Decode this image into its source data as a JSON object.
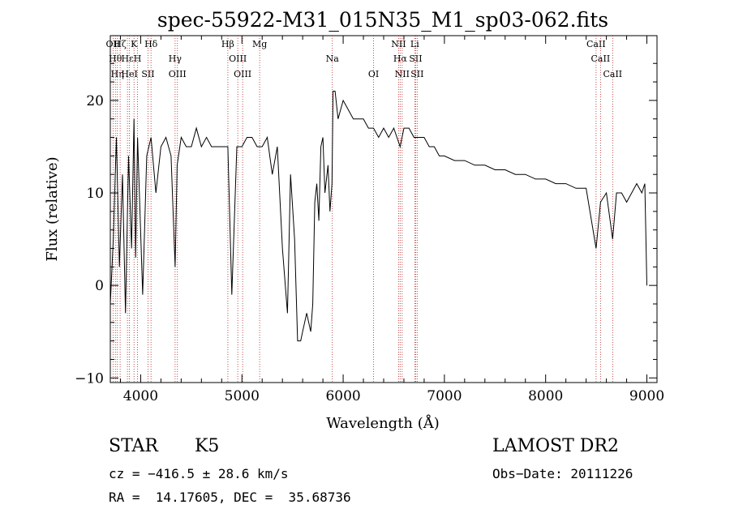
{
  "chart_data": {
    "type": "line",
    "title": "spec-55922-M31_015N35_M1_sp03-062.fits",
    "xlabel": "Wavelength (Å)",
    "ylabel": "Flux (relative)",
    "xlim": [
      3700,
      9100
    ],
    "ylim": [
      -10.5,
      27
    ],
    "xticks": [
      4000,
      5000,
      6000,
      7000,
      8000,
      9000
    ],
    "yticks": [
      -10,
      0,
      10,
      20
    ],
    "grid": false,
    "series": [
      {
        "x": [
          3700,
          3730,
          3760,
          3790,
          3820,
          3850,
          3880,
          3910,
          3934,
          3950,
          3969,
          3990,
          4020,
          4060,
          4102,
          4150,
          4200,
          4250,
          4300,
          4340,
          4360,
          4400,
          4450,
          4500,
          4550,
          4600,
          4650,
          4700,
          4750,
          4800,
          4861,
          4900,
          4950,
          5000,
          5050,
          5100,
          5150,
          5200,
          5250,
          5300,
          5350,
          5400,
          5450,
          5480,
          5520,
          5550,
          5580,
          5600,
          5620,
          5640,
          5660,
          5680,
          5700,
          5720,
          5740,
          5760,
          5780,
          5800,
          5820,
          5850,
          5870,
          5890,
          5900,
          5920,
          5950,
          6000,
          6050,
          6100,
          6150,
          6200,
          6250,
          6300,
          6350,
          6400,
          6450,
          6500,
          6563,
          6600,
          6650,
          6700,
          6750,
          6800,
          6850,
          6900,
          6950,
          7000,
          7100,
          7200,
          7300,
          7400,
          7500,
          7600,
          7700,
          7800,
          7900,
          8000,
          8100,
          8200,
          8300,
          8400,
          8498,
          8542,
          8600,
          8662,
          8700,
          8750,
          8800,
          8850,
          8900,
          8950,
          8980,
          9000
        ],
        "values": [
          -2,
          5,
          16,
          2,
          12,
          -3,
          14,
          4,
          18,
          3,
          16,
          9,
          -1,
          14,
          16,
          10,
          15,
          16,
          14,
          2,
          13,
          16,
          15,
          15,
          17,
          15,
          16,
          15,
          15,
          15,
          15,
          -1,
          15,
          15,
          16,
          16,
          15,
          15,
          16,
          12,
          15,
          4,
          -3,
          12,
          5,
          -6,
          -6,
          -5,
          -4,
          -3,
          -4,
          -5,
          -2,
          9,
          11,
          7,
          15,
          16,
          10,
          13,
          8,
          11,
          21,
          21,
          18,
          20,
          19,
          18,
          18,
          18,
          17,
          17,
          16,
          17,
          16,
          17,
          15,
          17,
          17,
          16,
          16,
          16,
          15,
          15,
          14,
          14,
          13.5,
          13.5,
          13,
          13,
          12.5,
          12.5,
          12,
          12,
          11.5,
          11.5,
          11,
          11,
          10.5,
          10.5,
          4,
          9,
          10,
          5,
          10,
          10,
          9,
          10,
          11,
          10,
          11,
          0
        ]
      }
    ],
    "lines": [
      {
        "x": 3727,
        "labels": [
          "OII"
        ]
      },
      {
        "x": 3750,
        "labels": [
          "Hθ"
        ]
      },
      {
        "x": 3770,
        "labels": [
          "Hη"
        ]
      },
      {
        "x": 3797,
        "labels": [
          "Hζ"
        ]
      },
      {
        "x": 3869,
        "labels": [
          "Hε"
        ]
      },
      {
        "x": 3889,
        "labels": [
          "HeI"
        ]
      },
      {
        "x": 3934,
        "labels": [
          "K"
        ]
      },
      {
        "x": 3969,
        "labels": [
          "H"
        ]
      },
      {
        "x": 4072,
        "labels": [
          "SII"
        ]
      },
      {
        "x": 4102,
        "labels": [
          "Hδ"
        ]
      },
      {
        "x": 4340,
        "labels": [
          "Hγ"
        ]
      },
      {
        "x": 4363,
        "labels": [
          "OIII"
        ]
      },
      {
        "x": 4861,
        "labels": [
          "Hβ"
        ]
      },
      {
        "x": 4959,
        "labels": [
          "OIII"
        ]
      },
      {
        "x": 5007,
        "labels": [
          "OIII"
        ]
      },
      {
        "x": 5175,
        "labels": [
          "Mg"
        ]
      },
      {
        "x": 5893,
        "labels": [
          "Na"
        ]
      },
      {
        "x": 6300,
        "labels": [
          "OI"
        ]
      },
      {
        "x": 6548,
        "labels": [
          "NII"
        ]
      },
      {
        "x": 6563,
        "labels": [
          "Hα"
        ]
      },
      {
        "x": 6583,
        "labels": [
          "NII"
        ]
      },
      {
        "x": 6707,
        "labels": [
          "Li"
        ]
      },
      {
        "x": 6716,
        "labels": [
          "SII"
        ]
      },
      {
        "x": 6731,
        "labels": [
          "SII"
        ]
      },
      {
        "x": 8498,
        "labels": [
          "CaII"
        ]
      },
      {
        "x": 8542,
        "labels": [
          "CaII"
        ]
      },
      {
        "x": 8662,
        "labels": [
          "CaII"
        ]
      }
    ],
    "line_color": "#b22222"
  },
  "info": {
    "class": "STAR",
    "subclass": "K5",
    "survey": "LAMOST DR2",
    "cz": "cz = −416.5 ± 28.6 km/s",
    "obs_date": "Obs−Date: 20111226",
    "coords": "RA =  14.17605, DEC =  35.68736"
  }
}
